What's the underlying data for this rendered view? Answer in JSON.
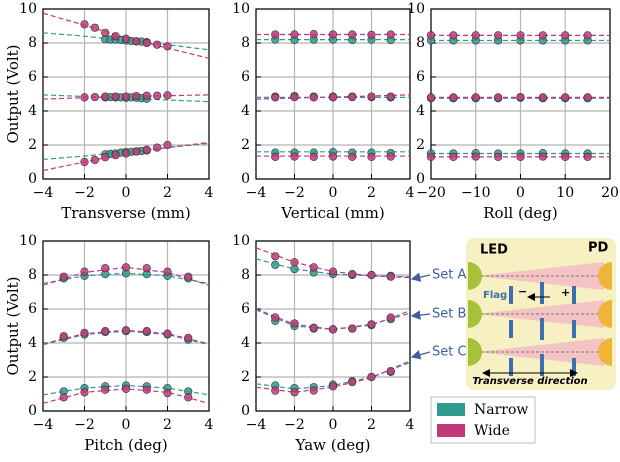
{
  "chart_data": [
    {
      "type": "scatter",
      "x_label": "Transverse (mm)",
      "y_label": "Output (Volt)",
      "xlim": [
        -4,
        4
      ],
      "ylim": [
        0,
        10
      ],
      "xticks": [
        -4,
        -2,
        0,
        2,
        4
      ],
      "yticks": [
        0,
        2,
        4,
        6,
        8,
        10
      ],
      "grid": true,
      "fit_x": [
        -4,
        -2,
        0,
        2,
        4
      ],
      "series": [
        {
          "name": "Narrow",
          "color": "#2f9a8e",
          "x": [
            -1,
            -0.75,
            -0.5,
            -0.25,
            0,
            0.25,
            0.5,
            0.75,
            1
          ],
          "values": [
            8.22,
            8.2,
            8.2,
            8.18,
            8.15,
            8.12,
            8.1,
            8.08,
            8.05
          ],
          "fit": [
            8.6,
            8.4,
            8.15,
            7.9,
            7.6
          ]
        },
        {
          "name": "Narrow",
          "color": "#2f9a8e",
          "x": [
            -1,
            -0.75,
            -0.5,
            -0.25,
            0,
            0.25,
            0.5,
            0.75,
            1
          ],
          "values": [
            4.8,
            4.82,
            4.8,
            4.8,
            4.78,
            4.8,
            4.78,
            4.75,
            4.72
          ],
          "fit": [
            4.95,
            4.85,
            4.75,
            4.65,
            4.55
          ]
        },
        {
          "name": "Narrow",
          "color": "#2f9a8e",
          "x": [
            -1,
            -0.75,
            -0.5,
            -0.25,
            0,
            0.25,
            0.5,
            0.75,
            1
          ],
          "values": [
            1.45,
            1.48,
            1.5,
            1.55,
            1.58,
            1.6,
            1.62,
            1.65,
            1.68
          ],
          "fit": [
            1.15,
            1.35,
            1.6,
            1.85,
            2.1
          ]
        },
        {
          "name": "Wide",
          "color": "#c2397a",
          "x": [
            -2,
            -1.5,
            -1,
            -0.5,
            0,
            0.5,
            1,
            1.5,
            2
          ],
          "values": [
            9.1,
            8.9,
            8.6,
            8.4,
            8.25,
            8.1,
            8.0,
            7.9,
            7.8
          ],
          "fit": [
            9.75,
            9.05,
            8.3,
            7.7,
            7.1
          ]
        },
        {
          "name": "Wide",
          "color": "#c2397a",
          "x": [
            -2,
            -1.5,
            -1,
            -0.5,
            0,
            0.5,
            1,
            1.5,
            2
          ],
          "values": [
            4.8,
            4.82,
            4.85,
            4.85,
            4.85,
            4.88,
            4.9,
            4.9,
            4.92
          ],
          "fit": [
            4.7,
            4.78,
            4.85,
            4.9,
            4.95
          ]
        },
        {
          "name": "Wide",
          "color": "#c2397a",
          "x": [
            -2,
            -1.5,
            -1,
            -0.5,
            0,
            0.5,
            1,
            1.5,
            2
          ],
          "values": [
            1.0,
            1.12,
            1.28,
            1.4,
            1.5,
            1.62,
            1.72,
            1.85,
            2.0
          ],
          "fit": [
            0.5,
            1.0,
            1.5,
            1.85,
            2.15
          ]
        }
      ]
    },
    {
      "type": "scatter",
      "x_label": "Vertical (mm)",
      "xlim": [
        -4,
        4
      ],
      "ylim": [
        0,
        10
      ],
      "xticks": [
        -4,
        -2,
        0,
        2,
        4
      ],
      "yticks": [
        0,
        2,
        4,
        6,
        8,
        10
      ],
      "grid": true,
      "fit_x": [
        -4,
        -2,
        0,
        2,
        4
      ],
      "series": [
        {
          "name": "Narrow",
          "color": "#2f9a8e",
          "x": [
            -3,
            -2,
            -1,
            0,
            1,
            2,
            3
          ],
          "values": [
            8.2,
            8.18,
            8.2,
            8.2,
            8.18,
            8.2,
            8.18
          ],
          "fit": [
            8.2,
            8.2,
            8.2,
            8.2,
            8.2
          ]
        },
        {
          "name": "Narrow",
          "color": "#2f9a8e",
          "x": [
            -3,
            -2,
            -1,
            0,
            1,
            2,
            3
          ],
          "values": [
            4.85,
            4.88,
            4.85,
            4.85,
            4.85,
            4.82,
            4.8
          ],
          "fit": [
            4.8,
            4.8,
            4.8,
            4.8,
            4.8
          ]
        },
        {
          "name": "Narrow",
          "color": "#2f9a8e",
          "x": [
            -3,
            -2,
            -1,
            0,
            1,
            2,
            3
          ],
          "values": [
            1.55,
            1.55,
            1.55,
            1.58,
            1.55,
            1.55,
            1.52
          ],
          "fit": [
            1.6,
            1.6,
            1.6,
            1.6,
            1.6
          ]
        },
        {
          "name": "Wide",
          "color": "#c2397a",
          "x": [
            -3,
            -2,
            -1,
            0,
            1,
            2,
            3
          ],
          "values": [
            8.5,
            8.5,
            8.52,
            8.5,
            8.5,
            8.48,
            8.5
          ],
          "fit": [
            8.5,
            8.5,
            8.5,
            8.5,
            8.5
          ]
        },
        {
          "name": "Wide",
          "color": "#c2397a",
          "x": [
            -3,
            -2,
            -1,
            0,
            1,
            2,
            3
          ],
          "values": [
            4.8,
            4.82,
            4.8,
            4.8,
            4.82,
            4.85,
            4.85
          ],
          "fit": [
            4.7,
            4.76,
            4.82,
            4.88,
            4.95
          ]
        },
        {
          "name": "Wide",
          "color": "#c2397a",
          "x": [
            -3,
            -2,
            -1,
            0,
            1,
            2,
            3
          ],
          "values": [
            1.3,
            1.32,
            1.3,
            1.32,
            1.3,
            1.3,
            1.32
          ],
          "fit": [
            1.35,
            1.35,
            1.35,
            1.35,
            1.35
          ]
        }
      ]
    },
    {
      "type": "scatter",
      "x_label": "Roll (deg)",
      "xlim": [
        -20,
        20
      ],
      "ylim": [
        0,
        10
      ],
      "xticks": [
        -20,
        -10,
        0,
        10,
        20
      ],
      "yticks": [
        0,
        2,
        4,
        6,
        8,
        10
      ],
      "grid": true,
      "fit_x": [
        -20,
        -10,
        0,
        10,
        20
      ],
      "series": [
        {
          "name": "Narrow",
          "color": "#2f9a8e",
          "x": [
            -20,
            -15,
            -10,
            -5,
            0,
            5,
            10,
            15
          ],
          "values": [
            8.15,
            8.15,
            8.15,
            8.15,
            8.15,
            8.15,
            8.15,
            8.15
          ],
          "fit": [
            8.15,
            8.15,
            8.15,
            8.15,
            8.15
          ]
        },
        {
          "name": "Narrow",
          "color": "#2f9a8e",
          "x": [
            -20,
            -15,
            -10,
            -5,
            0,
            5,
            10,
            15
          ],
          "values": [
            4.75,
            4.75,
            4.75,
            4.75,
            4.78,
            4.75,
            4.75,
            4.75
          ],
          "fit": [
            4.75,
            4.75,
            4.75,
            4.75,
            4.75
          ]
        },
        {
          "name": "Narrow",
          "color": "#2f9a8e",
          "x": [
            -20,
            -15,
            -10,
            -5,
            0,
            5,
            10,
            15
          ],
          "values": [
            1.5,
            1.5,
            1.52,
            1.5,
            1.5,
            1.52,
            1.5,
            1.5
          ],
          "fit": [
            1.5,
            1.5,
            1.5,
            1.5,
            1.5
          ]
        },
        {
          "name": "Wide",
          "color": "#c2397a",
          "x": [
            -20,
            -15,
            -10,
            -5,
            0,
            5,
            10,
            15
          ],
          "values": [
            8.45,
            8.45,
            8.45,
            8.45,
            8.45,
            8.45,
            8.45,
            8.45
          ],
          "fit": [
            8.45,
            8.45,
            8.45,
            8.45,
            8.45
          ]
        },
        {
          "name": "Wide",
          "color": "#c2397a",
          "x": [
            -20,
            -15,
            -10,
            -5,
            0,
            5,
            10,
            15
          ],
          "values": [
            4.8,
            4.8,
            4.8,
            4.8,
            4.82,
            4.8,
            4.8,
            4.8
          ],
          "fit": [
            4.8,
            4.8,
            4.8,
            4.8,
            4.8
          ]
        },
        {
          "name": "Wide",
          "color": "#c2397a",
          "x": [
            -20,
            -15,
            -10,
            -5,
            0,
            5,
            10,
            15
          ],
          "values": [
            1.3,
            1.3,
            1.32,
            1.3,
            1.3,
            1.32,
            1.3,
            1.3
          ],
          "fit": [
            1.3,
            1.3,
            1.3,
            1.3,
            1.3
          ]
        }
      ]
    },
    {
      "type": "scatter",
      "x_label": "Pitch (deg)",
      "y_label": "Output (Volt)",
      "xlim": [
        -4,
        4
      ],
      "ylim": [
        0,
        10
      ],
      "xticks": [
        -4,
        -2,
        0,
        2,
        4
      ],
      "yticks": [
        0,
        2,
        4,
        6,
        8,
        10
      ],
      "grid": true,
      "fit_x": [
        -4,
        -2,
        0,
        2,
        4
      ],
      "series": [
        {
          "name": "Narrow",
          "color": "#2f9a8e",
          "x": [
            -3,
            -2,
            -1,
            0,
            1,
            2,
            3
          ],
          "values": [
            7.8,
            7.95,
            8.05,
            8.1,
            8.05,
            7.95,
            7.8
          ],
          "fit": [
            7.5,
            7.95,
            8.1,
            7.95,
            7.5
          ]
        },
        {
          "name": "Narrow",
          "color": "#2f9a8e",
          "x": [
            -3,
            -2,
            -1,
            0,
            1,
            2,
            3
          ],
          "values": [
            4.3,
            4.5,
            4.65,
            4.7,
            4.65,
            4.5,
            4.2
          ],
          "fit": [
            3.9,
            4.5,
            4.7,
            4.5,
            3.9
          ]
        },
        {
          "name": "Narrow",
          "color": "#2f9a8e",
          "x": [
            -3,
            -2,
            -1,
            0,
            1,
            2,
            3
          ],
          "values": [
            1.15,
            1.35,
            1.45,
            1.5,
            1.45,
            1.35,
            1.15
          ],
          "fit": [
            0.95,
            1.35,
            1.5,
            1.35,
            0.95
          ]
        },
        {
          "name": "Wide",
          "color": "#c2397a",
          "x": [
            -3,
            -2,
            -1,
            0,
            1,
            2,
            3
          ],
          "values": [
            7.9,
            8.2,
            8.4,
            8.45,
            8.4,
            8.2,
            7.9
          ],
          "fit": [
            7.4,
            8.15,
            8.45,
            8.15,
            7.4
          ]
        },
        {
          "name": "Wide",
          "color": "#c2397a",
          "x": [
            -3,
            -2,
            -1,
            0,
            1,
            2,
            3
          ],
          "values": [
            4.4,
            4.6,
            4.7,
            4.75,
            4.7,
            4.55,
            4.3
          ],
          "fit": [
            3.95,
            4.55,
            4.75,
            4.55,
            3.95
          ]
        },
        {
          "name": "Wide",
          "color": "#c2397a",
          "x": [
            -3,
            -2,
            -1,
            0,
            1,
            2,
            3
          ],
          "values": [
            0.8,
            1.1,
            1.25,
            1.3,
            1.25,
            1.05,
            0.8
          ],
          "fit": [
            0.45,
            1.1,
            1.3,
            1.1,
            0.45
          ]
        }
      ]
    },
    {
      "type": "scatter",
      "x_label": "Yaw (deg)",
      "xlim": [
        -4,
        4
      ],
      "ylim": [
        0,
        10
      ],
      "xticks": [
        -4,
        -2,
        0,
        2,
        4
      ],
      "yticks": [
        0,
        2,
        4,
        6,
        8,
        10
      ],
      "grid": true,
      "fit_x": [
        -4,
        -2,
        0,
        2,
        4
      ],
      "series": [
        {
          "name": "Narrow",
          "color": "#2f9a8e",
          "x": [
            -3,
            -2,
            -1,
            0,
            1,
            2,
            3
          ],
          "values": [
            8.6,
            8.35,
            8.15,
            8.05,
            8.0,
            8.0,
            7.95
          ],
          "fit": [
            8.95,
            8.35,
            8.05,
            7.95,
            7.9
          ]
        },
        {
          "name": "Narrow",
          "color": "#2f9a8e",
          "x": [
            -3,
            -2,
            -1,
            0,
            1,
            2,
            3
          ],
          "values": [
            5.3,
            5.0,
            4.85,
            4.8,
            4.85,
            5.05,
            5.4
          ],
          "fit": [
            5.95,
            5.0,
            4.8,
            5.05,
            5.9
          ]
        },
        {
          "name": "Narrow",
          "color": "#2f9a8e",
          "x": [
            -3,
            -2,
            -1,
            0,
            1,
            2,
            3
          ],
          "values": [
            1.5,
            1.35,
            1.4,
            1.55,
            1.75,
            2.0,
            2.3
          ],
          "fit": [
            1.6,
            1.3,
            1.5,
            2.0,
            2.85
          ]
        },
        {
          "name": "Wide",
          "color": "#c2397a",
          "x": [
            -3,
            -2,
            -1,
            0,
            1,
            2,
            3
          ],
          "values": [
            9.1,
            8.75,
            8.45,
            8.2,
            8.05,
            8.0,
            7.9
          ],
          "fit": [
            9.6,
            8.75,
            8.2,
            7.95,
            7.85
          ]
        },
        {
          "name": "Wide",
          "color": "#c2397a",
          "x": [
            -3,
            -2,
            -1,
            0,
            1,
            2,
            3
          ],
          "values": [
            5.5,
            5.15,
            4.9,
            4.8,
            4.85,
            5.1,
            5.5
          ],
          "fit": [
            6.0,
            5.1,
            4.8,
            5.1,
            5.75
          ]
        },
        {
          "name": "Wide",
          "color": "#c2397a",
          "x": [
            -3,
            -2,
            -1,
            0,
            1,
            2,
            3
          ],
          "values": [
            1.2,
            1.1,
            1.2,
            1.45,
            1.7,
            2.0,
            2.35
          ],
          "fit": [
            1.4,
            1.1,
            1.4,
            1.95,
            2.95
          ]
        }
      ]
    }
  ],
  "diagram": {
    "led": "LED",
    "pd": "PD",
    "flag": "Flag",
    "minus": "−",
    "plus": "+",
    "direction": "Transverse direction",
    "sets": [
      "Set A",
      "Set B",
      "Set C"
    ]
  }
}
